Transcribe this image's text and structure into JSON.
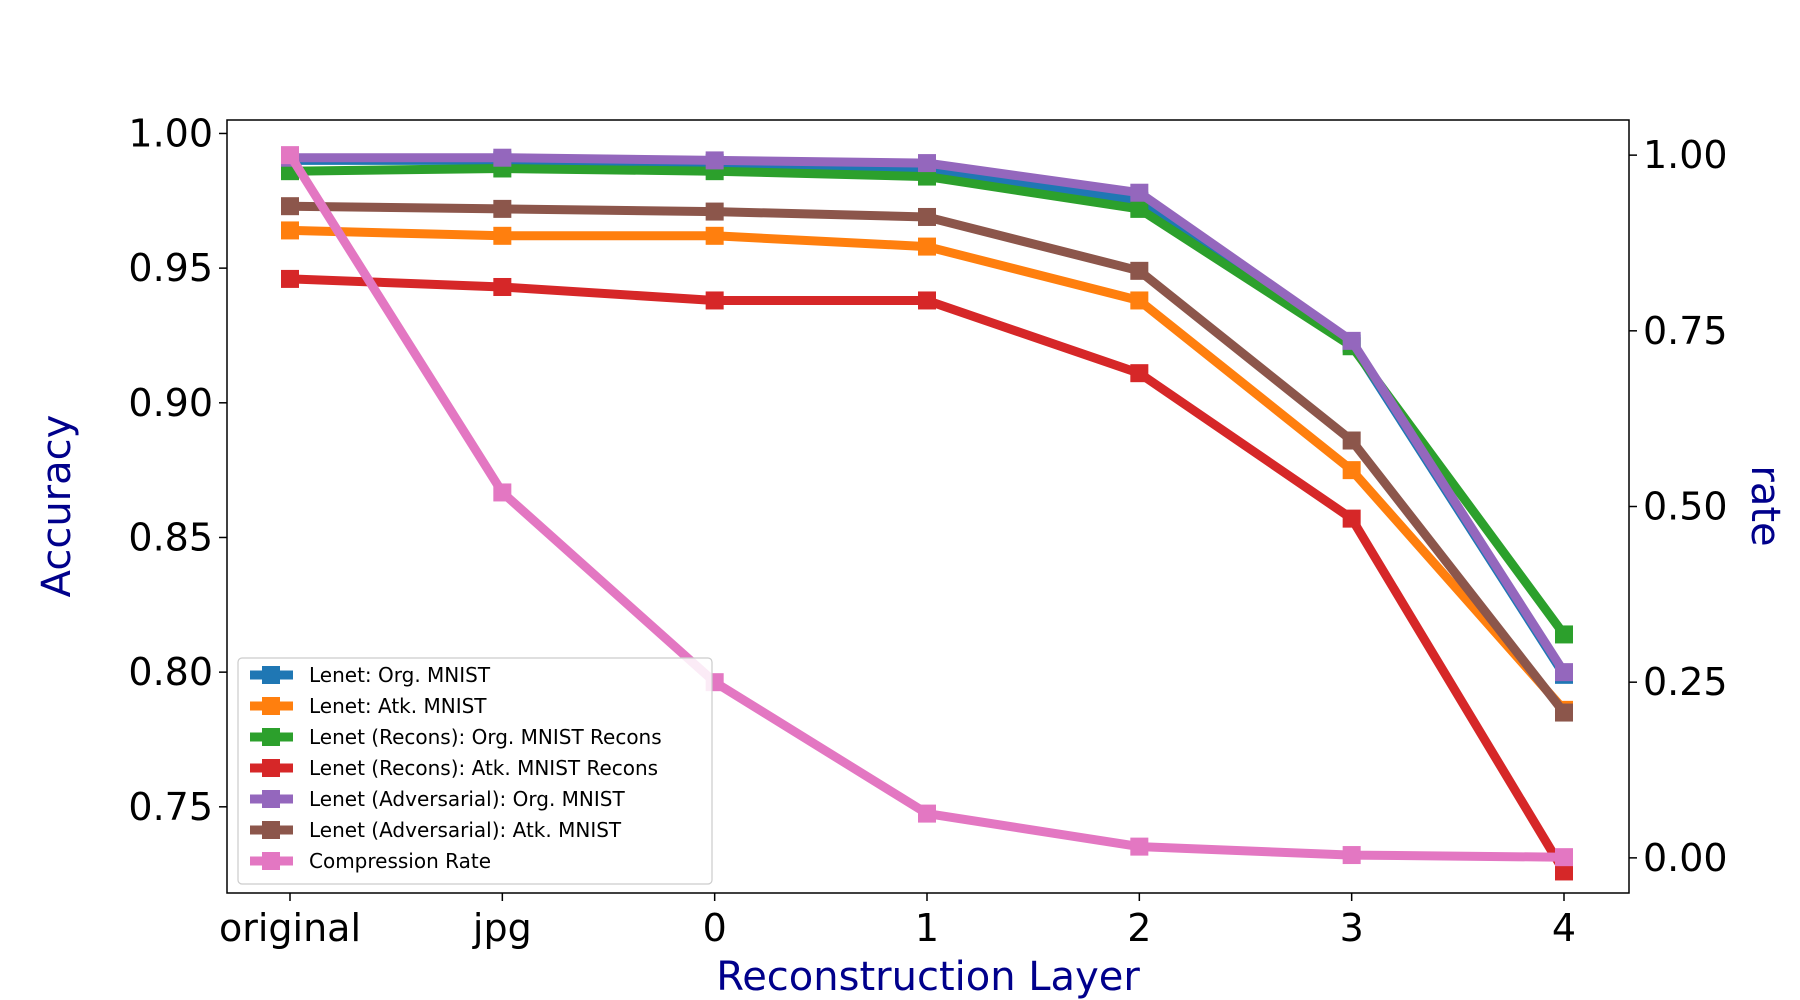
{
  "chart_data": {
    "type": "line",
    "title": "",
    "xlabel": "Reconstruction Layer",
    "ylabel": "Accuracy",
    "y2label": "rate",
    "axis_title_color": "#00008b",
    "categories": [
      "original",
      "jpg",
      "0",
      "1",
      "2",
      "3",
      "4"
    ],
    "ylim": [
      0.718,
      1.005
    ],
    "y2lim": [
      -0.05,
      1.05
    ],
    "yticks": [
      {
        "value": 0.75,
        "label": "0.75"
      },
      {
        "value": 0.8,
        "label": "0.80"
      },
      {
        "value": 0.85,
        "label": "0.85"
      },
      {
        "value": 0.9,
        "label": "0.90"
      },
      {
        "value": 0.95,
        "label": "0.95"
      },
      {
        "value": 1.0,
        "label": "1.00"
      }
    ],
    "y2ticks": [
      {
        "value": 0.0,
        "label": "0.00"
      },
      {
        "value": 0.25,
        "label": "0.25"
      },
      {
        "value": 0.5,
        "label": "0.50"
      },
      {
        "value": 0.75,
        "label": "0.75"
      },
      {
        "value": 1.0,
        "label": "1.00"
      }
    ],
    "grid": false,
    "legend_position": "lower-left",
    "series": [
      {
        "name": "Lenet: Org. MNIST",
        "color": "#1f77b4",
        "axis": "left",
        "values": [
          0.99,
          0.99,
          0.989,
          0.987,
          0.975,
          0.922,
          0.799
        ]
      },
      {
        "name": "Lenet: Atk. MNIST",
        "color": "#ff7f0e",
        "axis": "left",
        "values": [
          0.964,
          0.962,
          0.962,
          0.958,
          0.938,
          0.875,
          0.786
        ]
      },
      {
        "name": "Lenet (Recons): Org. MNIST Recons",
        "color": "#2ca02c",
        "axis": "left",
        "values": [
          0.986,
          0.987,
          0.986,
          0.984,
          0.972,
          0.921,
          0.814
        ]
      },
      {
        "name": "Lenet (Recons): Atk. MNIST Recons",
        "color": "#d62728",
        "axis": "left",
        "values": [
          0.946,
          0.943,
          0.938,
          0.938,
          0.911,
          0.857,
          0.726
        ]
      },
      {
        "name": "Lenet (Adversarial): Org. MNIST",
        "color": "#9467bd",
        "axis": "left",
        "values": [
          0.991,
          0.991,
          0.99,
          0.989,
          0.978,
          0.923,
          0.8
        ]
      },
      {
        "name": "Lenet (Adversarial): Atk. MNIST",
        "color": "#8c564b",
        "axis": "left",
        "values": [
          0.973,
          0.972,
          0.971,
          0.969,
          0.949,
          0.886,
          0.785
        ]
      },
      {
        "name": "Compression Rate",
        "color": "#e377c2",
        "axis": "right",
        "values": [
          1.0,
          0.52,
          0.25,
          0.063,
          0.016,
          0.004,
          0.001
        ]
      }
    ]
  }
}
